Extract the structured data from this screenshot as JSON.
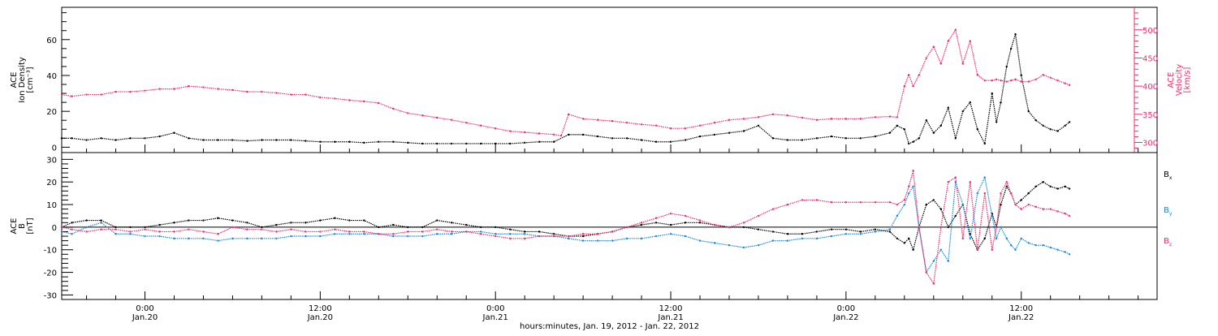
{
  "chart_data": [
    {
      "type": "scatter",
      "xlabel": "hours:minutes, Jan. 19, 2012 - Jan. 22, 2012",
      "x_ticks": [
        {
          "x": 18,
          "time": "0:00",
          "date": "Jan.20"
        },
        {
          "x": 30,
          "time": "12:00",
          "date": "Jan.20"
        },
        {
          "x": 42,
          "time": "0:00",
          "date": "Jan.21"
        },
        {
          "x": 54,
          "time": "12:00",
          "date": "Jan.21"
        },
        {
          "x": 66,
          "time": "0:00",
          "date": "Jan.22"
        },
        {
          "x": 78,
          "time": "12:00",
          "date": "Jan.22"
        }
      ],
      "x_units": "hours since Jan.19 0:00",
      "xlim": [
        12.3,
        87.3
      ],
      "left_axis": {
        "label_lines": [
          "ACE",
          "Ion Density",
          "[cm⁻³]"
        ],
        "ylim": [
          -3,
          78
        ],
        "ticks": [
          0,
          20,
          40,
          60
        ]
      },
      "right_axis": {
        "label_lines": [
          "ACE",
          "Velocity",
          "[km/s]"
        ],
        "ylim": [
          282,
          540
        ],
        "ticks": [
          300,
          350,
          400,
          450,
          500
        ]
      },
      "series": [
        {
          "axis": "left",
          "color": "#000000",
          "x": [
            12.3,
            13,
            14,
            15,
            16,
            17,
            18,
            19,
            20,
            21,
            22,
            23,
            24,
            25,
            26,
            27,
            28,
            29,
            30,
            31,
            32,
            33,
            34,
            35,
            36,
            37,
            38,
            39,
            40,
            41,
            42,
            43,
            44,
            45,
            46,
            47,
            48,
            49,
            50,
            51,
            52,
            53,
            54,
            55,
            56,
            57,
            58,
            59,
            60,
            61,
            62,
            63,
            64,
            65,
            66,
            67,
            68,
            69,
            69.5,
            70,
            70.3,
            70.6,
            71,
            71.5,
            72,
            72.5,
            73,
            73.5,
            74,
            74.5,
            75,
            75.5,
            76,
            76.3,
            76.6,
            77,
            77.3,
            77.6,
            78,
            78.5,
            79,
            79.5,
            80,
            80.5,
            81,
            81.3
          ],
          "y": [
            5,
            5,
            4,
            5,
            4,
            5,
            5,
            6,
            8,
            5,
            4,
            4,
            4,
            3.5,
            4,
            4,
            4,
            3.5,
            3,
            3,
            3,
            2.5,
            3,
            3,
            2.5,
            2,
            2,
            2,
            2,
            2,
            2,
            2,
            2.5,
            3,
            3,
            7,
            7,
            6,
            5,
            5,
            4,
            3,
            3,
            4,
            6,
            7,
            8,
            9,
            12,
            5,
            4,
            4,
            5,
            6,
            5,
            5,
            6,
            8,
            12,
            10,
            2,
            3,
            5,
            15,
            8,
            12,
            22,
            5,
            20,
            25,
            10,
            2,
            30,
            14,
            25,
            45,
            55,
            63,
            40,
            20,
            15,
            12,
            10,
            9,
            12,
            14
          ]
        },
        {
          "axis": "right",
          "color": "#ee2e6b",
          "x": [
            12.3,
            13,
            14,
            15,
            16,
            17,
            18,
            19,
            20,
            21,
            22,
            23,
            24,
            25,
            26,
            27,
            28,
            29,
            30,
            31,
            32,
            33,
            34,
            35,
            36,
            37,
            38,
            39,
            40,
            41,
            42,
            43,
            44,
            45,
            46,
            46.5,
            47,
            48,
            49,
            50,
            51,
            52,
            53,
            54,
            55,
            56,
            57,
            58,
            59,
            60,
            61,
            62,
            63,
            64,
            65,
            66,
            67,
            68,
            69,
            69.5,
            70,
            70.3,
            70.6,
            71,
            71.5,
            72,
            72.5,
            73,
            73.5,
            74,
            74.5,
            75,
            75.5,
            76,
            76.3,
            76.6,
            77,
            77.3,
            77.6,
            78,
            78.5,
            79,
            79.5,
            80,
            80.5,
            81,
            81.3
          ],
          "y": [
            385,
            382,
            385,
            385,
            390,
            390,
            392,
            395,
            395,
            400,
            398,
            395,
            393,
            390,
            390,
            388,
            385,
            385,
            380,
            378,
            375,
            373,
            370,
            360,
            352,
            348,
            344,
            340,
            335,
            330,
            325,
            320,
            318,
            316,
            314,
            312,
            350,
            342,
            340,
            338,
            335,
            332,
            330,
            325,
            325,
            330,
            335,
            340,
            342,
            345,
            350,
            348,
            344,
            340,
            342,
            342,
            342,
            345,
            346,
            345,
            400,
            420,
            400,
            420,
            450,
            470,
            440,
            480,
            500,
            440,
            480,
            420,
            410,
            410,
            412,
            410,
            408,
            410,
            412,
            408,
            408,
            412,
            420,
            415,
            410,
            405,
            402
          ]
        }
      ]
    },
    {
      "type": "scatter",
      "ylabel_lines": [
        "ACE",
        "B",
        "[nT]"
      ],
      "ylim": [
        -32,
        33
      ],
      "y_ticks": [
        -30,
        -20,
        -10,
        0,
        10,
        20,
        30
      ],
      "zero_line": true,
      "series": [
        {
          "name": "B",
          "name_sub": "x",
          "color": "#000000",
          "x": [
            12.3,
            13,
            14,
            15,
            16,
            17,
            18,
            19,
            20,
            21,
            22,
            23,
            24,
            25,
            26,
            27,
            28,
            29,
            30,
            31,
            32,
            33,
            34,
            35,
            36,
            37,
            38,
            39,
            40,
            41,
            42,
            43,
            44,
            45,
            46,
            47,
            48,
            49,
            50,
            51,
            52,
            53,
            54,
            55,
            56,
            57,
            58,
            59,
            60,
            61,
            62,
            63,
            64,
            65,
            66,
            67,
            68,
            69,
            69.5,
            70,
            70.3,
            70.6,
            71,
            71.5,
            72,
            72.5,
            73,
            73.5,
            74,
            74.5,
            75,
            75.5,
            76,
            76.3,
            76.6,
            77,
            77.3,
            77.6,
            78,
            78.5,
            79,
            79.5,
            80,
            80.5,
            81,
            81.3
          ],
          "y": [
            0,
            2,
            3,
            3,
            0,
            0,
            0,
            1,
            2,
            3,
            3,
            4,
            3,
            2,
            0,
            1,
            2,
            2,
            3,
            4,
            3,
            3,
            0,
            1,
            0,
            0,
            3,
            2,
            1,
            0,
            0,
            -1,
            -2,
            -2,
            -3,
            -4,
            -4,
            -3,
            -2,
            0,
            1,
            2,
            1,
            2,
            2,
            1,
            0,
            0,
            -1,
            -2,
            -3,
            -3,
            -2,
            -1,
            -1,
            -2,
            -1,
            -2,
            -5,
            -7,
            -5,
            -10,
            0,
            10,
            12,
            8,
            0,
            5,
            10,
            -3,
            -10,
            -5,
            6,
            0,
            10,
            18,
            15,
            10,
            12,
            15,
            18,
            20,
            18,
            17,
            18,
            17
          ]
        },
        {
          "name": "B",
          "name_sub": "y",
          "color": "#1a86dc",
          "x": [
            12.3,
            13,
            14,
            15,
            16,
            17,
            18,
            19,
            20,
            21,
            22,
            23,
            24,
            25,
            26,
            27,
            28,
            29,
            30,
            31,
            32,
            33,
            34,
            35,
            36,
            37,
            38,
            39,
            40,
            41,
            42,
            43,
            44,
            45,
            46,
            47,
            48,
            49,
            50,
            51,
            52,
            53,
            54,
            55,
            56,
            57,
            58,
            59,
            60,
            61,
            62,
            63,
            64,
            65,
            66,
            67,
            68,
            69,
            69.5,
            70,
            70.3,
            70.6,
            71,
            71.5,
            72,
            72.5,
            73,
            73.5,
            74,
            74.5,
            75,
            75.5,
            76,
            76.3,
            76.6,
            77,
            77.3,
            77.6,
            78,
            78.5,
            79,
            79.5,
            80,
            80.5,
            81,
            81.3
          ],
          "y": [
            -2,
            -3,
            0,
            2,
            -3,
            -3,
            -4,
            -4,
            -5,
            -5,
            -5,
            -6,
            -5,
            -5,
            -5,
            -5,
            -4,
            -4,
            -4,
            -3,
            -3,
            -3,
            -3,
            -4,
            -4,
            -4,
            -3,
            -3,
            -2,
            -2,
            -3,
            -3,
            -3,
            -4,
            -4,
            -5,
            -6,
            -6,
            -6,
            -5,
            -5,
            -4,
            -3,
            -4,
            -6,
            -7,
            -8,
            -9,
            -8,
            -6,
            -6,
            -5,
            -5,
            -4,
            -3,
            -3,
            -2,
            -1,
            5,
            10,
            15,
            18,
            0,
            -20,
            -15,
            -10,
            -15,
            20,
            10,
            -5,
            15,
            22,
            5,
            -5,
            0,
            -5,
            -8,
            -10,
            -5,
            -7,
            -8,
            -8,
            -9,
            -10,
            -11,
            -12
          ]
        },
        {
          "name": "B",
          "name_sub": "z",
          "color": "#ee2e6b",
          "x": [
            12.3,
            13,
            14,
            15,
            16,
            17,
            18,
            19,
            20,
            21,
            22,
            23,
            24,
            25,
            26,
            27,
            28,
            29,
            30,
            31,
            32,
            33,
            34,
            35,
            36,
            37,
            38,
            39,
            40,
            41,
            42,
            43,
            44,
            45,
            46,
            47,
            48,
            49,
            50,
            51,
            52,
            53,
            54,
            55,
            56,
            57,
            58,
            59,
            60,
            61,
            62,
            63,
            64,
            65,
            66,
            67,
            68,
            69,
            69.5,
            70,
            70.3,
            70.6,
            71,
            71.5,
            72,
            72.5,
            73,
            73.5,
            74,
            74.5,
            75,
            75.5,
            76,
            76.3,
            76.6,
            77,
            77.3,
            77.6,
            78,
            78.5,
            79,
            79.5,
            80,
            80.5,
            81,
            81.3
          ],
          "y": [
            0,
            -1,
            -2,
            -1,
            -1,
            -2,
            -1,
            -2,
            -2,
            -1,
            -2,
            -3,
            0,
            -1,
            -1,
            -2,
            -1,
            -2,
            -2,
            -1,
            -2,
            -2,
            -3,
            -3,
            -2,
            -2,
            -1,
            -2,
            -2,
            -3,
            -4,
            -5,
            -5,
            -4,
            -4,
            -4,
            -3,
            -3,
            -2,
            0,
            2,
            4,
            6,
            5,
            3,
            1,
            0,
            2,
            5,
            8,
            10,
            12,
            12,
            11,
            11,
            11,
            11,
            11,
            10,
            12,
            18,
            25,
            0,
            -20,
            -25,
            0,
            20,
            22,
            -5,
            20,
            -10,
            15,
            -10,
            0,
            15,
            20,
            15,
            10,
            8,
            10,
            9,
            8,
            8,
            7,
            6,
            5
          ]
        }
      ]
    }
  ]
}
